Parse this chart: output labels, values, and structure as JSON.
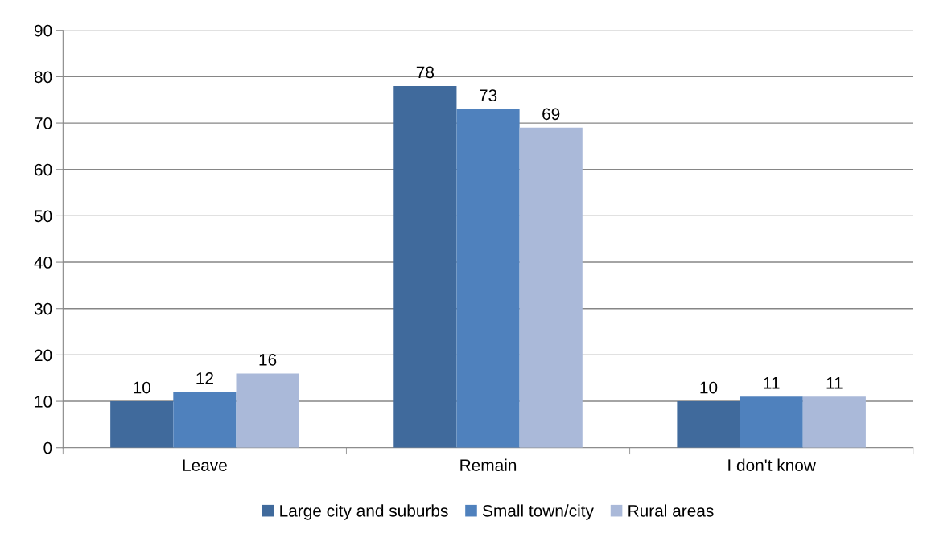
{
  "chart_data": {
    "type": "bar",
    "categories": [
      "Leave",
      "Remain",
      "I don't know"
    ],
    "series": [
      {
        "name": "Large city and suburbs",
        "color": "#406a9c",
        "values": [
          10,
          78,
          10
        ]
      },
      {
        "name": "Small town/city",
        "color": "#4f81bd",
        "values": [
          12,
          73,
          11
        ]
      },
      {
        "name": "Rural areas",
        "color": "#aab9d9",
        "values": [
          16,
          69,
          11
        ]
      }
    ],
    "ylim": [
      0,
      90
    ],
    "yticks": [
      0,
      10,
      20,
      30,
      40,
      50,
      60,
      70,
      80,
      90
    ],
    "grid": "y",
    "legend": "bottom",
    "data_labels": true
  }
}
